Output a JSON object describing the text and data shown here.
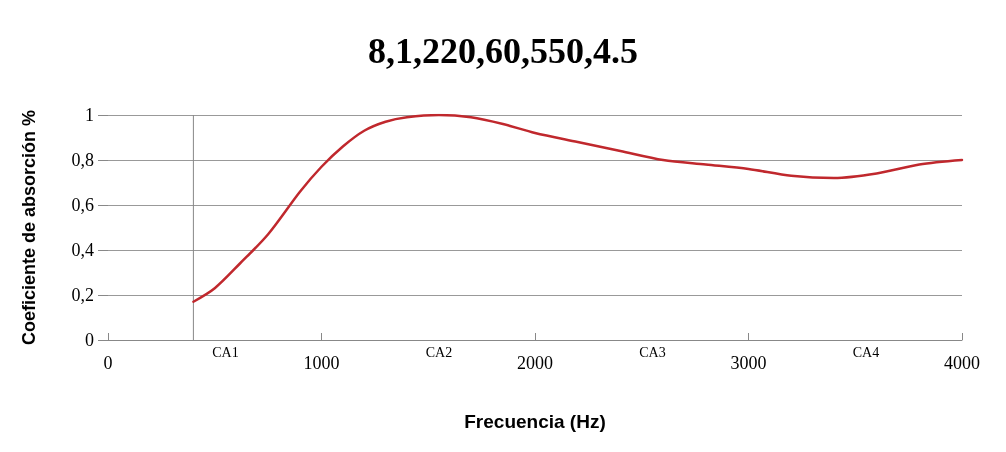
{
  "chart_data": {
    "type": "line",
    "title": "8,1,220,60,550,4.5",
    "xlabel": "Frecuencia (Hz)",
    "ylabel": "Coeficiente de absorción %",
    "x": [
      400,
      500,
      618,
      750,
      900,
      1000,
      1100,
      1200,
      1300,
      1400,
      1550,
      1700,
      1850,
      2000,
      2200,
      2400,
      2600,
      2800,
      3000,
      3200,
      3400,
      3600,
      3800,
      4000
    ],
    "series": [
      {
        "color": "#c0282d",
        "values": [
          0.17,
          0.23,
          0.34,
          0.47,
          0.66,
          0.77,
          0.86,
          0.93,
          0.97,
          0.99,
          1.0,
          0.99,
          0.96,
          0.92,
          0.88,
          0.84,
          0.8,
          0.78,
          0.76,
          0.73,
          0.72,
          0.74,
          0.78,
          0.8
        ]
      }
    ],
    "xlim": [
      0,
      4000
    ],
    "xticks": [
      0,
      1000,
      2000,
      3000,
      4000
    ],
    "ylim": [
      0,
      1
    ],
    "yticks": [
      {
        "value": 0,
        "label": "0"
      },
      {
        "value": 0.2,
        "label": "0,2"
      },
      {
        "value": 0.4,
        "label": "0,4"
      },
      {
        "value": 0.6,
        "label": "0,6"
      },
      {
        "value": 0.8,
        "label": "0,8"
      },
      {
        "value": 1,
        "label": "1"
      }
    ],
    "grid": "y",
    "marker": "none",
    "line_style": "solid",
    "ref_lines": [
      {
        "axis": "x",
        "value": 400,
        "color": "#888888"
      }
    ],
    "annotations": [
      "CA1",
      "CA2",
      "CA3",
      "CA4"
    ]
  }
}
